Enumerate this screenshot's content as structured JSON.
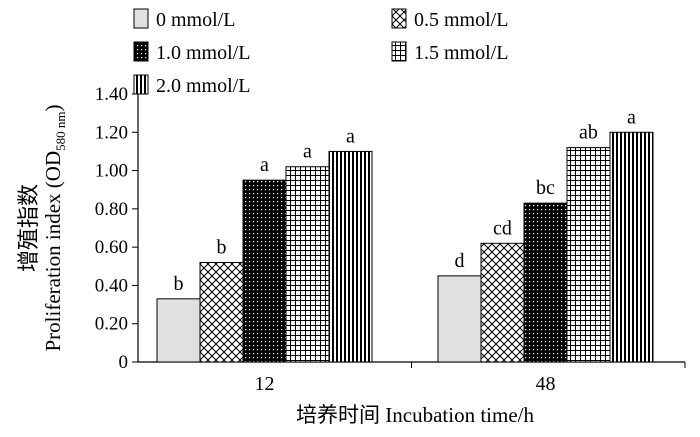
{
  "chart_data": {
    "type": "bar",
    "title": "",
    "xlabel": "培养时间  Incubation time/h",
    "ylabel_cn": "增殖指数",
    "ylabel_en_main": "Proliferation index (OD",
    "ylabel_en_sub": "580 nm",
    "ylabel_en_close": ")",
    "ylim": [
      0,
      1.4
    ],
    "yticks": [
      "0",
      "0.20",
      "0.40",
      "0.60",
      "0.80",
      "1.00",
      "1.20",
      "1.40"
    ],
    "categories": [
      "12",
      "48"
    ],
    "legend_position": "top",
    "series": [
      {
        "name": "0 mmol/L",
        "pattern": "plain",
        "values": [
          0.33,
          0.45
        ],
        "letters": [
          "b",
          "d"
        ]
      },
      {
        "name": "0.5 mmol/L",
        "pattern": "crosshatch",
        "values": [
          0.52,
          0.62
        ],
        "letters": [
          "b",
          "cd"
        ]
      },
      {
        "name": "1.0 mmol/L",
        "pattern": "dotted-dark",
        "values": [
          0.95,
          0.83
        ],
        "letters": [
          "a",
          "bc"
        ]
      },
      {
        "name": "1.5 mmol/L",
        "pattern": "grid",
        "values": [
          1.02,
          1.12
        ],
        "letters": [
          "a",
          "ab"
        ]
      },
      {
        "name": "2.0 mmol/L",
        "pattern": "vstripe",
        "values": [
          1.1,
          1.2
        ],
        "letters": [
          "a",
          "a"
        ]
      }
    ]
  }
}
